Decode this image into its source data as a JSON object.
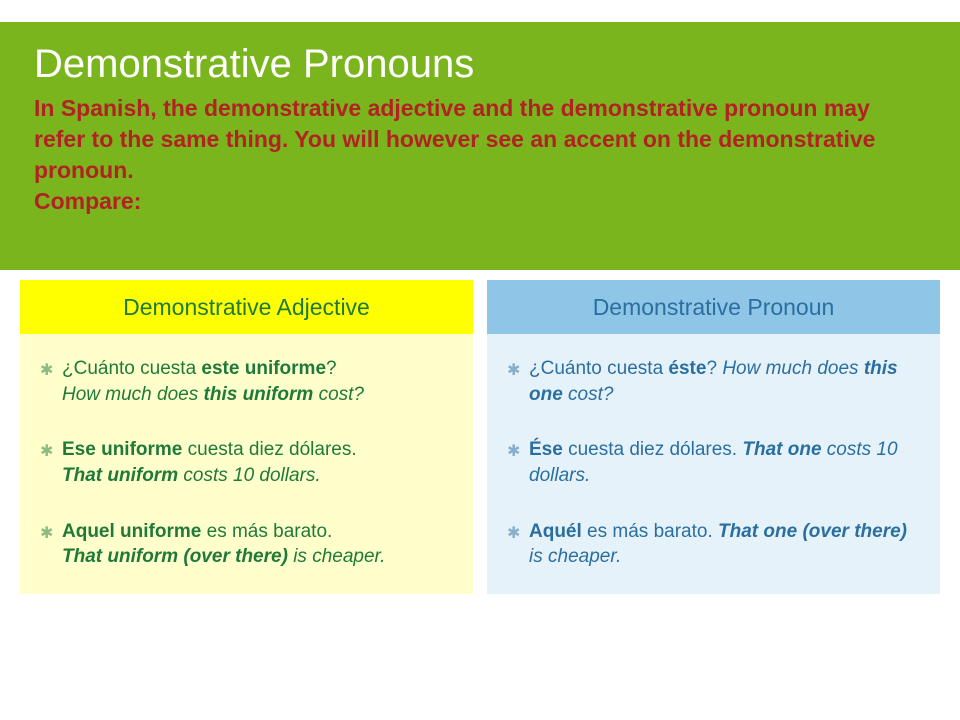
{
  "colors": {
    "header_bg": "#7ab51d",
    "title_color": "#ffffff",
    "subtitle_color": "#b22222",
    "left_header_bg": "#ffff00",
    "left_header_text": "#1f7a3a",
    "left_body_bg": "#ffffcc",
    "left_body_text": "#1f7a3a",
    "right_header_bg": "#8fc6e8",
    "right_header_text": "#2a6fa0",
    "right_body_bg": "#e6f2fa",
    "right_body_text": "#2a6fa0",
    "bullet_glyph": "✱"
  },
  "header": {
    "title": "Demonstrative Pronouns",
    "subtitle": "In Spanish, the demonstrative adjective and the demonstrative pronoun may refer to the same thing.  You will however see an accent on the demonstrative pronoun.",
    "compare": "Compare:"
  },
  "left": {
    "heading": "Demonstrative Adjective",
    "items": [
      {
        "es_pre": "¿Cuánto cuesta ",
        "es_bold": "este uniforme",
        "es_post": "?",
        "en_pre": "How much does ",
        "en_bold": "this uniform",
        "en_post": " cost?"
      },
      {
        "es_pre": "",
        "es_bold": "Ese uniforme",
        "es_post": " cuesta diez dólares.",
        "en_pre": "",
        "en_bold": "That uniform",
        "en_post": " costs 10 dollars."
      },
      {
        "es_pre": "",
        "es_bold": "Aquel uniforme",
        "es_post": " es más barato.",
        "en_pre": "",
        "en_bold": "That uniform (over there) ",
        "en_post": " is cheaper."
      }
    ]
  },
  "right": {
    "heading": "Demonstrative Pronoun",
    "items": [
      {
        "es_pre": "¿Cuánto cuesta ",
        "es_bold": "éste",
        "es_post": "?",
        "en_pre": "How much does ",
        "en_bold": "this one",
        "en_post": " cost?",
        "inline": true
      },
      {
        "es_pre": "",
        "es_bold": "Ése",
        "es_post": " cuesta diez dólares.",
        "en_pre": "",
        "en_bold": "That one",
        "en_post": " costs 10 dollars.",
        "inline": true
      },
      {
        "es_pre": "",
        "es_bold": "Aquél",
        "es_post": " es más barato.",
        "en_pre": "",
        "en_bold": "That one (over there)",
        "en_post": " is cheaper.",
        "inline": true
      }
    ]
  }
}
